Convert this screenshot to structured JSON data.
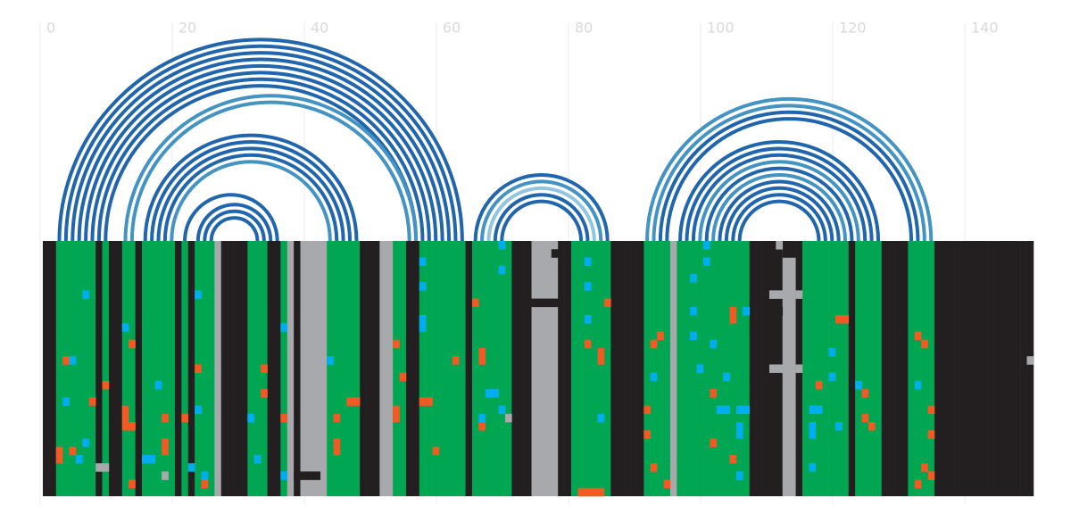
{
  "chart_data": {
    "type": "arc",
    "xlim": [
      0,
      150
    ],
    "xticks": [
      0,
      20,
      40,
      60,
      80,
      100,
      120,
      140
    ],
    "grid": true,
    "palette": {
      "K": "#231f20",
      "G": "#00a651",
      "S": "#a7a9ac",
      "O": "#f15a22",
      "B": "#00aeef"
    },
    "arcs": [
      {
        "from": 2,
        "to": 63,
        "color": "#2166ac"
      },
      {
        "from": 3,
        "to": 62,
        "color": "#2166ac"
      },
      {
        "from": 4,
        "to": 61,
        "color": "#2166ac"
      },
      {
        "from": 5,
        "to": 60,
        "color": "#2166ac"
      },
      {
        "from": 6,
        "to": 59,
        "color": "#2166ac"
      },
      {
        "from": 7,
        "to": 58,
        "color": "#2166ac"
      },
      {
        "from": 8,
        "to": 57,
        "color": "#2166ac"
      },
      {
        "from": 9,
        "to": 56,
        "color": "#2166ac"
      },
      {
        "from": 12,
        "to": 56,
        "color": "#4393c3"
      },
      {
        "from": 13,
        "to": 55,
        "color": "#4393c3"
      },
      {
        "from": 15,
        "to": 47,
        "color": "#2166ac"
      },
      {
        "from": 16,
        "to": 46,
        "color": "#2166ac"
      },
      {
        "from": 17,
        "to": 45,
        "color": "#2166ac"
      },
      {
        "from": 18,
        "to": 44,
        "color": "#2166ac"
      },
      {
        "from": 19,
        "to": 43,
        "color": "#4393c3"
      },
      {
        "from": 21,
        "to": 35,
        "color": "#2166ac"
      },
      {
        "from": 23,
        "to": 34,
        "color": "#2166ac"
      },
      {
        "from": 24,
        "to": 33,
        "color": "#2166ac"
      },
      {
        "from": 25,
        "to": 32,
        "color": "#2166ac"
      },
      {
        "from": 65,
        "to": 85,
        "color": "#2166ac"
      },
      {
        "from": 66,
        "to": 84,
        "color": "#4393c3"
      },
      {
        "from": 67,
        "to": 83,
        "color": "#92c5de"
      },
      {
        "from": 68,
        "to": 82,
        "color": "#2166ac"
      },
      {
        "from": 69,
        "to": 81,
        "color": "#2166ac"
      },
      {
        "from": 91,
        "to": 134,
        "color": "#4393c3"
      },
      {
        "from": 92,
        "to": 133,
        "color": "#4393c3"
      },
      {
        "from": 93,
        "to": 132,
        "color": "#2166ac"
      },
      {
        "from": 94,
        "to": 131,
        "color": "#2166ac"
      },
      {
        "from": 96,
        "to": 126,
        "color": "#2166ac"
      },
      {
        "from": 97,
        "to": 125,
        "color": "#2166ac"
      },
      {
        "from": 98,
        "to": 124,
        "color": "#2166ac"
      },
      {
        "from": 99,
        "to": 123,
        "color": "#4393c3"
      },
      {
        "from": 100,
        "to": 122,
        "color": "#2166ac"
      },
      {
        "from": 101,
        "to": 121,
        "color": "#4393c3"
      },
      {
        "from": 102,
        "to": 120,
        "color": "#2166ac"
      },
      {
        "from": 103,
        "to": 119,
        "color": "#2166ac"
      },
      {
        "from": 104,
        "to": 118,
        "color": "#2166ac"
      },
      {
        "from": 105,
        "to": 117,
        "color": "#2166ac"
      }
    ],
    "rows": 31,
    "columns": [
      "K",
      "K",
      "G",
      "G",
      "G",
      "G",
      "G",
      "G",
      "K",
      "G",
      "K",
      "K",
      "G",
      "G",
      "K",
      "G",
      "G",
      "G",
      "G",
      "G",
      "K",
      "G",
      "K",
      "G",
      "G",
      "G",
      "S",
      "K",
      "K",
      "K",
      "K",
      "G",
      "G",
      "G",
      "K",
      "K",
      "G",
      "S",
      "K",
      "S",
      "S",
      "S",
      "S",
      "G",
      "G",
      "G",
      "G",
      "G",
      "K",
      "K",
      "K",
      "S",
      "S",
      "G",
      "G",
      "K",
      "K",
      "G",
      "G",
      "G",
      "G",
      "G",
      "G",
      "G",
      "K",
      "G",
      "G",
      "G",
      "G",
      "G",
      "G",
      "K",
      "K",
      "K",
      "S",
      "S",
      "S",
      "S",
      "K",
      "K",
      "G",
      "G",
      "G",
      "G",
      "G",
      "G",
      "K",
      "K",
      "K",
      "K",
      "K",
      "G",
      "G",
      "G",
      "G",
      "S",
      "G",
      "G",
      "G",
      "G",
      "G",
      "G",
      "G",
      "G",
      "G",
      "G",
      "G",
      "K",
      "K",
      "K",
      "K",
      "K",
      "S",
      "S",
      "K",
      "G",
      "G",
      "G",
      "G",
      "G",
      "G",
      "G",
      "K",
      "G",
      "G",
      "G",
      "G",
      "K",
      "K",
      "K",
      "K",
      "G",
      "G",
      "G",
      "G",
      "K",
      "K",
      "K",
      "K",
      "K",
      "K",
      "K",
      "K",
      "K",
      "K",
      "K",
      "K",
      "K",
      "K",
      "K"
    ],
    "cells": [
      [
        14,
        3,
        "O"
      ],
      [
        14,
        4,
        "B"
      ],
      [
        19,
        3,
        "B"
      ],
      [
        25,
        2,
        "O"
      ],
      [
        26,
        2,
        "O"
      ],
      [
        25,
        4,
        "O"
      ],
      [
        26,
        5,
        "B"
      ],
      [
        6,
        6,
        "B"
      ],
      [
        24,
        6,
        "B"
      ],
      [
        19,
        7,
        "O"
      ],
      [
        27,
        8,
        "S"
      ],
      [
        27,
        9,
        "S"
      ],
      [
        17,
        9,
        "O"
      ],
      [
        10,
        12,
        "B"
      ],
      [
        12,
        13,
        "O"
      ],
      [
        20,
        12,
        "O"
      ],
      [
        21,
        12,
        "O"
      ],
      [
        22,
        12,
        "O"
      ],
      [
        22,
        13,
        "O"
      ],
      [
        29,
        13,
        "O"
      ],
      [
        26,
        15,
        "B"
      ],
      [
        26,
        16,
        "B"
      ],
      [
        17,
        17,
        "B"
      ],
      [
        21,
        18,
        "O"
      ],
      [
        24,
        18,
        "O"
      ],
      [
        25,
        18,
        "O"
      ],
      [
        28,
        18,
        "S"
      ],
      [
        21,
        21,
        "O"
      ],
      [
        27,
        22,
        "B"
      ],
      [
        6,
        23,
        "B"
      ],
      [
        15,
        23,
        "O"
      ],
      [
        20,
        23,
        "B"
      ],
      [
        28,
        24,
        "B"
      ],
      [
        29,
        24,
        "O"
      ],
      [
        21,
        31,
        "B"
      ],
      [
        26,
        32,
        "B"
      ],
      [
        15,
        33,
        "O"
      ],
      [
        18,
        33,
        "O"
      ],
      [
        10,
        36,
        "B"
      ],
      [
        21,
        36,
        "O"
      ],
      [
        28,
        36,
        "B"
      ],
      [
        28,
        38,
        "K"
      ],
      [
        28,
        39,
        "K"
      ],
      [
        28,
        40,
        "K"
      ],
      [
        28,
        41,
        "K"
      ],
      [
        14,
        43,
        "B"
      ],
      [
        21,
        44,
        "O"
      ],
      [
        24,
        44,
        "O"
      ],
      [
        25,
        44,
        "O"
      ],
      [
        19,
        46,
        "O"
      ],
      [
        19,
        47,
        "O"
      ],
      [
        20,
        53,
        "O"
      ],
      [
        21,
        53,
        "O"
      ],
      [
        12,
        53,
        "O"
      ],
      [
        16,
        54,
        "O"
      ],
      [
        2,
        57,
        "B"
      ],
      [
        5,
        57,
        "B"
      ],
      [
        9,
        57,
        "B"
      ],
      [
        10,
        57,
        "B"
      ],
      [
        19,
        57,
        "O"
      ],
      [
        19,
        58,
        "O"
      ],
      [
        25,
        59,
        "O"
      ],
      [
        14,
        62,
        "O"
      ],
      [
        0,
        69,
        "B"
      ],
      [
        3,
        69,
        "B"
      ],
      [
        7,
        65,
        "O"
      ],
      [
        13,
        66,
        "O"
      ],
      [
        14,
        66,
        "O"
      ],
      [
        18,
        67,
        "B"
      ],
      [
        18,
        68,
        "B"
      ],
      [
        20,
        69,
        "B"
      ],
      [
        21,
        70,
        "S"
      ],
      [
        21,
        66,
        "B"
      ],
      [
        22,
        66,
        "O"
      ],
      [
        7,
        73,
        "K"
      ],
      [
        0,
        76,
        "S"
      ],
      [
        1,
        77,
        "K"
      ],
      [
        7,
        74,
        "K"
      ],
      [
        7,
        75,
        "K"
      ],
      [
        7,
        76,
        "K"
      ],
      [
        7,
        77,
        "K"
      ],
      [
        2,
        82,
        "B"
      ],
      [
        5,
        82,
        "B"
      ],
      [
        9,
        82,
        "B"
      ],
      [
        12,
        82,
        "O"
      ],
      [
        13,
        84,
        "O"
      ],
      [
        14,
        84,
        "O"
      ],
      [
        21,
        84,
        "B"
      ],
      [
        30,
        81,
        "O"
      ],
      [
        30,
        82,
        "O"
      ],
      [
        30,
        83,
        "O"
      ],
      [
        30,
        84,
        "O"
      ],
      [
        7,
        85,
        "O"
      ],
      [
        11,
        93,
        "O"
      ],
      [
        12,
        92,
        "O"
      ],
      [
        16,
        92,
        "B"
      ],
      [
        20,
        91,
        "O"
      ],
      [
        23,
        91,
        "O"
      ],
      [
        27,
        92,
        "O"
      ],
      [
        29,
        94,
        "O"
      ],
      [
        0,
        100,
        "B"
      ],
      [
        2,
        100,
        "B"
      ],
      [
        4,
        98,
        "B"
      ],
      [
        8,
        98,
        "B"
      ],
      [
        11,
        98,
        "B"
      ],
      [
        12,
        101,
        "B"
      ],
      [
        8,
        104,
        "O"
      ],
      [
        9,
        104,
        "O"
      ],
      [
        8,
        106,
        "B"
      ],
      [
        15,
        99,
        "B"
      ],
      [
        16,
        103,
        "B"
      ],
      [
        18,
        101,
        "O"
      ],
      [
        20,
        102,
        "B"
      ],
      [
        20,
        103,
        "B"
      ],
      [
        20,
        105,
        "B"
      ],
      [
        20,
        106,
        "B"
      ],
      [
        22,
        105,
        "B"
      ],
      [
        23,
        105,
        "B"
      ],
      [
        24,
        101,
        "O"
      ],
      [
        26,
        104,
        "O"
      ],
      [
        28,
        105,
        "B"
      ],
      [
        6,
        110,
        "S"
      ],
      [
        6,
        111,
        "S"
      ],
      [
        6,
        114,
        "S"
      ],
      [
        15,
        110,
        "S"
      ],
      [
        15,
        111,
        "S"
      ],
      [
        15,
        114,
        "S"
      ],
      [
        8,
        111,
        "K"
      ],
      [
        9,
        120,
        "O"
      ],
      [
        9,
        121,
        "O"
      ],
      [
        13,
        119,
        "B"
      ],
      [
        16,
        119,
        "B"
      ],
      [
        17,
        117,
        "O"
      ],
      [
        20,
        116,
        "B"
      ],
      [
        20,
        117,
        "B"
      ],
      [
        22,
        116,
        "B"
      ],
      [
        23,
        116,
        "B"
      ],
      [
        27,
        116,
        "B"
      ],
      [
        22,
        120,
        "B"
      ],
      [
        17,
        123,
        "B"
      ],
      [
        18,
        124,
        "O"
      ],
      [
        21,
        124,
        "O"
      ],
      [
        22,
        125,
        "O"
      ],
      [
        11,
        132,
        "O"
      ],
      [
        12,
        133,
        "O"
      ],
      [
        17,
        132,
        "B"
      ],
      [
        20,
        134,
        "O"
      ],
      [
        23,
        134,
        "O"
      ],
      [
        27,
        133,
        "O"
      ],
      [
        28,
        134,
        "O"
      ],
      [
        29,
        132,
        "O"
      ],
      [
        14,
        149,
        "S"
      ],
      [
        0,
        112,
        "K"
      ],
      [
        1,
        112,
        "K"
      ],
      [
        0,
        113,
        "K"
      ],
      [
        1,
        113,
        "K"
      ],
      [
        0,
        111,
        "S"
      ]
    ]
  }
}
